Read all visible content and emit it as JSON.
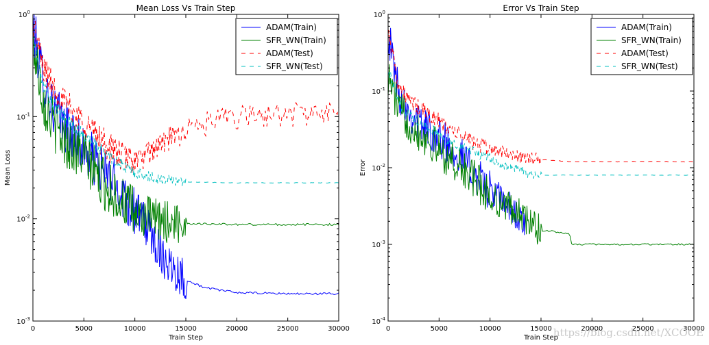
{
  "watermark": "https://blog.csdn.net/XCOOE",
  "colors": {
    "adam_train": "#0000ff",
    "sfr_train": "#008000",
    "adam_test": "#ff0000",
    "sfr_test": "#00bfbf"
  },
  "chart_data": [
    {
      "type": "line",
      "title": "Mean Loss Vs Train Step",
      "xlabel": "Train Step",
      "ylabel": "Mean Loss",
      "yscale": "log",
      "xlim": [
        0,
        30000
      ],
      "ylim": [
        0.001,
        1
      ],
      "xticks": [
        0,
        5000,
        10000,
        15000,
        20000,
        25000,
        30000
      ],
      "xtick_labels": [
        "0",
        "5000",
        "10000",
        "15000",
        "20000",
        "25000",
        "30000"
      ],
      "yticks": [
        0.001,
        0.01,
        0.1,
        1
      ],
      "ytick_labels": [
        {
          "base": "10",
          "exp": "-3"
        },
        {
          "base": "10",
          "exp": "-2"
        },
        {
          "base": "10",
          "exp": "-1"
        },
        {
          "base": "10",
          "exp": "0"
        }
      ],
      "legend": {
        "location": "top-right",
        "entries": [
          "ADAM(Train)",
          "SFR_WN(Train)",
          "ADAM(Test)",
          "SFR_WN(Test)"
        ]
      },
      "series": [
        {
          "name": "ADAM(Train)",
          "style": "solid",
          "color": "#0000ff",
          "noise": 0.6,
          "x": [
            0,
            200,
            500,
            1000,
            2000,
            3000,
            5000,
            7000,
            9000,
            10000,
            11000,
            12000,
            13000,
            14000,
            15000,
            17000,
            20000,
            25000,
            30000
          ],
          "y": [
            0.8,
            0.6,
            0.4,
            0.23,
            0.12,
            0.085,
            0.048,
            0.028,
            0.017,
            0.012,
            0.009,
            0.006,
            0.004,
            0.0032,
            0.0025,
            0.0021,
            0.0019,
            0.00185,
            0.00185
          ]
        },
        {
          "name": "SFR_WN(Train)",
          "style": "solid",
          "color": "#008000",
          "noise": 0.6,
          "x": [
            0,
            200,
            500,
            1000,
            2000,
            3000,
            5000,
            7000,
            9000,
            10000,
            11000,
            12000,
            13000,
            15000,
            20000,
            25000,
            30000
          ],
          "y": [
            0.55,
            0.4,
            0.3,
            0.15,
            0.085,
            0.06,
            0.04,
            0.022,
            0.014,
            0.011,
            0.0105,
            0.0098,
            0.0094,
            0.009,
            0.0088,
            0.0088,
            0.0088
          ]
        },
        {
          "name": "ADAM(Test)",
          "style": "dashed",
          "color": "#ff0000",
          "noise": 0.35,
          "x": [
            0,
            200,
            500,
            1000,
            2000,
            3000,
            4000,
            5000,
            6000,
            7000,
            8000,
            9000,
            10000,
            11000,
            12000,
            14000,
            16000,
            18000,
            20000,
            23000,
            26000,
            30000
          ],
          "y": [
            0.8,
            0.7,
            0.5,
            0.3,
            0.2,
            0.14,
            0.11,
            0.09,
            0.07,
            0.055,
            0.045,
            0.04,
            0.038,
            0.04,
            0.05,
            0.065,
            0.08,
            0.09,
            0.098,
            0.103,
            0.106,
            0.107
          ]
        },
        {
          "name": "SFR_WN(Test)",
          "style": "dashed",
          "color": "#00bfbf",
          "noise": 0.15,
          "x": [
            0,
            200,
            500,
            1000,
            2000,
            3000,
            4000,
            5000,
            6000,
            7000,
            8000,
            9000,
            10000,
            12000,
            15000,
            20000,
            25000,
            30000
          ],
          "y": [
            0.6,
            0.5,
            0.35,
            0.2,
            0.13,
            0.1,
            0.08,
            0.065,
            0.055,
            0.045,
            0.038,
            0.032,
            0.028,
            0.025,
            0.023,
            0.0225,
            0.0225,
            0.0225
          ]
        }
      ]
    },
    {
      "type": "line",
      "title": "Error Vs Train Step",
      "xlabel": "Train Step",
      "ylabel": "Error",
      "yscale": "log",
      "xlim": [
        0,
        30000
      ],
      "ylim": [
        0.0001,
        1
      ],
      "xticks": [
        0,
        5000,
        10000,
        15000,
        20000,
        25000,
        30000
      ],
      "xtick_labels": [
        "0",
        "5000",
        "10000",
        "15000",
        "20000",
        "25000",
        "30000"
      ],
      "yticks": [
        0.0001,
        0.001,
        0.01,
        0.1,
        1
      ],
      "ytick_labels": [
        {
          "base": "10",
          "exp": "-4"
        },
        {
          "base": "10",
          "exp": "-3"
        },
        {
          "base": "10",
          "exp": "-2"
        },
        {
          "base": "10",
          "exp": "-1"
        },
        {
          "base": "10",
          "exp": "0"
        }
      ],
      "legend": {
        "location": "top-right",
        "entries": [
          "ADAM(Train)",
          "SFR_WN(Train)",
          "ADAM(Test)",
          "SFR_WN(Test)"
        ]
      },
      "series": [
        {
          "name": "ADAM(Train)",
          "style": "solid",
          "color": "#0000ff",
          "noise": 0.6,
          "x": [
            0,
            200,
            500,
            1000,
            2000,
            3000,
            5000,
            7000,
            8000,
            9000,
            10000,
            11000,
            12000,
            12500,
            13000,
            13600
          ],
          "y": [
            0.6,
            0.4,
            0.25,
            0.1,
            0.055,
            0.04,
            0.025,
            0.015,
            0.01,
            0.007,
            0.005,
            0.004,
            0.003,
            0.0025,
            0.002,
            0.0015
          ]
        },
        {
          "name": "SFR_WN(Train)",
          "style": "solid",
          "color": "#008000",
          "noise": 0.6,
          "x": [
            0,
            200,
            500,
            1000,
            2000,
            3000,
            5000,
            7000,
            8000,
            9000,
            10000,
            11000,
            12000,
            13000,
            14000,
            15000,
            16000,
            17000,
            17800,
            18000,
            30000
          ],
          "y": [
            0.15,
            0.13,
            0.1,
            0.06,
            0.04,
            0.03,
            0.017,
            0.01,
            0.008,
            0.006,
            0.004,
            0.0035,
            0.003,
            0.0025,
            0.0018,
            0.0015,
            0.0015,
            0.0014,
            0.0014,
            0.001,
            0.001
          ]
        },
        {
          "name": "ADAM(Test)",
          "style": "dashed",
          "color": "#ff0000",
          "noise": 0.25,
          "x": [
            0,
            200,
            500,
            1000,
            2000,
            3000,
            4000,
            5000,
            6000,
            7000,
            8000,
            9000,
            10000,
            11000,
            12000,
            13000,
            14000,
            16000,
            18000,
            30000
          ],
          "y": [
            0.6,
            0.45,
            0.3,
            0.12,
            0.075,
            0.06,
            0.05,
            0.04,
            0.032,
            0.027,
            0.023,
            0.02,
            0.018,
            0.016,
            0.015,
            0.014,
            0.013,
            0.0125,
            0.012,
            0.012
          ]
        },
        {
          "name": "SFR_WN(Test)",
          "style": "dashed",
          "color": "#00bfbf",
          "noise": 0.15,
          "x": [
            0,
            200,
            500,
            1000,
            2000,
            3000,
            4000,
            5000,
            6000,
            7000,
            8000,
            9000,
            10000,
            11000,
            12000,
            13000,
            13700,
            30000
          ],
          "y": [
            0.2,
            0.16,
            0.12,
            0.07,
            0.05,
            0.04,
            0.033,
            0.027,
            0.022,
            0.019,
            0.017,
            0.015,
            0.013,
            0.011,
            0.01,
            0.0095,
            0.008,
            0.008
          ]
        }
      ]
    }
  ]
}
